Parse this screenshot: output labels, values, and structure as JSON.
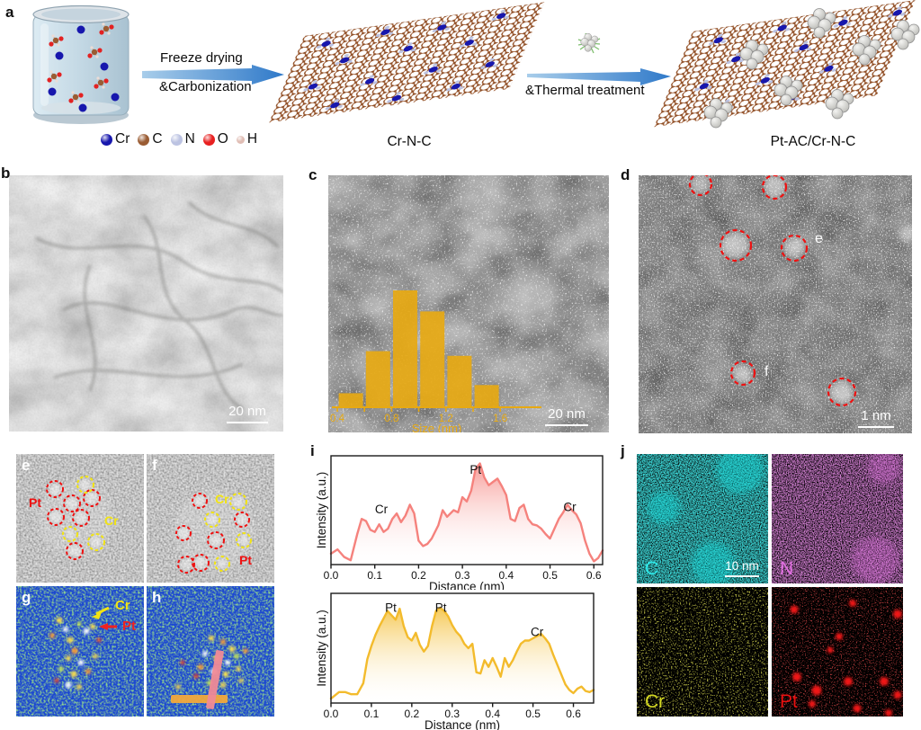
{
  "panel_a": {
    "label": "a",
    "process1_line1": "Freeze drying",
    "process1_line2": "&Carbonization",
    "process2_text": "&Thermal treatment",
    "product1_label": "Cr-N-C",
    "product2_label": "Pt-AC/Cr-N-C",
    "legend": [
      {
        "symbol": "Cr",
        "color": "#1717ad"
      },
      {
        "symbol": "C",
        "color": "#9a5c33"
      },
      {
        "symbol": "N",
        "color": "#bcc3e2"
      },
      {
        "symbol": "O",
        "color": "#e82020"
      },
      {
        "symbol": "H",
        "color": "#e0bdb4"
      }
    ]
  },
  "panel_b": {
    "label": "b",
    "scale_bar": "20 nm"
  },
  "panel_c": {
    "label": "c",
    "scale_bar": "20 nm"
  },
  "panel_d": {
    "label": "d",
    "scale_bar": "1 nm",
    "region_labels": [
      "e",
      "f"
    ]
  },
  "panel_e": {
    "label": "e",
    "pt_label": "Pt",
    "cr_label": "Cr"
  },
  "panel_f": {
    "label": "f",
    "cr_label": "Cr",
    "pt_label": "Pt"
  },
  "panel_g": {
    "label": "g",
    "cr_label": "Cr",
    "pt_label": "Pt"
  },
  "panel_h": {
    "label": "h"
  },
  "panel_i": {
    "label": "i"
  },
  "panel_j": {
    "label": "j",
    "scale_bar": "10 nm",
    "maps": [
      {
        "element": "C",
        "color": "#2ee8e8"
      },
      {
        "element": "N",
        "color": "#e26fe2"
      },
      {
        "element": "Cr",
        "color": "#d4d922"
      },
      {
        "element": "Pt",
        "color": "#ea1010"
      }
    ]
  },
  "chart_data": [
    {
      "id": "size_histogram",
      "type": "bar",
      "xlabel": "Size (nm)",
      "bin_centers": [
        0.5,
        0.7,
        0.9,
        1.1,
        1.3,
        1.5
      ],
      "bin_width": 0.2,
      "values_relative": [
        0.12,
        0.48,
        1.0,
        0.82,
        0.44,
        0.19
      ],
      "xticks": [
        0.4,
        0.8,
        1.2,
        1.6
      ],
      "xlim": [
        0.4,
        1.6
      ],
      "bar_color": "#e7a912",
      "axis_color": "#e7a912"
    },
    {
      "id": "line_profile_top",
      "type": "area",
      "xlabel": "Distance (nm)",
      "ylabel": "Intensity (a.u.)",
      "xlim": [
        0.0,
        0.62
      ],
      "xticks": [
        0.0,
        0.1,
        0.2,
        0.3,
        0.4,
        0.5,
        0.6
      ],
      "color": "#f5827d",
      "peak_labels": [
        {
          "text": "Cr",
          "x": 0.115,
          "y": 0.47
        },
        {
          "text": "Pt",
          "x": 0.33,
          "y": 0.835
        },
        {
          "text": "Cr",
          "x": 0.545,
          "y": 0.49
        }
      ],
      "points": [
        [
          0.0,
          0.1
        ],
        [
          0.015,
          0.14
        ],
        [
          0.03,
          0.07
        ],
        [
          0.045,
          0.04
        ],
        [
          0.06,
          0.28
        ],
        [
          0.07,
          0.42
        ],
        [
          0.08,
          0.4
        ],
        [
          0.09,
          0.32
        ],
        [
          0.1,
          0.3
        ],
        [
          0.11,
          0.37
        ],
        [
          0.12,
          0.3
        ],
        [
          0.13,
          0.33
        ],
        [
          0.14,
          0.42
        ],
        [
          0.15,
          0.47
        ],
        [
          0.16,
          0.39
        ],
        [
          0.17,
          0.45
        ],
        [
          0.18,
          0.55
        ],
        [
          0.19,
          0.47
        ],
        [
          0.2,
          0.22
        ],
        [
          0.21,
          0.17
        ],
        [
          0.22,
          0.19
        ],
        [
          0.23,
          0.24
        ],
        [
          0.245,
          0.36
        ],
        [
          0.255,
          0.5
        ],
        [
          0.265,
          0.44
        ],
        [
          0.28,
          0.5
        ],
        [
          0.29,
          0.48
        ],
        [
          0.3,
          0.62
        ],
        [
          0.31,
          0.58
        ],
        [
          0.32,
          0.68
        ],
        [
          0.33,
          0.88
        ],
        [
          0.34,
          0.93
        ],
        [
          0.35,
          0.8
        ],
        [
          0.36,
          0.73
        ],
        [
          0.37,
          0.76
        ],
        [
          0.38,
          0.79
        ],
        [
          0.39,
          0.72
        ],
        [
          0.4,
          0.64
        ],
        [
          0.41,
          0.42
        ],
        [
          0.42,
          0.4
        ],
        [
          0.43,
          0.52
        ],
        [
          0.44,
          0.55
        ],
        [
          0.45,
          0.42
        ],
        [
          0.46,
          0.37
        ],
        [
          0.47,
          0.36
        ],
        [
          0.48,
          0.33
        ],
        [
          0.49,
          0.28
        ],
        [
          0.5,
          0.24
        ],
        [
          0.51,
          0.33
        ],
        [
          0.52,
          0.42
        ],
        [
          0.53,
          0.48
        ],
        [
          0.54,
          0.55
        ],
        [
          0.55,
          0.5
        ],
        [
          0.56,
          0.46
        ],
        [
          0.57,
          0.38
        ],
        [
          0.58,
          0.22
        ],
        [
          0.59,
          0.1
        ],
        [
          0.6,
          0.03
        ],
        [
          0.61,
          0.06
        ],
        [
          0.62,
          0.13
        ]
      ]
    },
    {
      "id": "line_profile_bottom",
      "type": "area",
      "xlabel": "Distance (nm)",
      "ylabel": "Intensity (a.u.)",
      "xlim": [
        0.0,
        0.65
      ],
      "xticks": [
        0.0,
        0.1,
        0.2,
        0.3,
        0.4,
        0.5,
        0.6
      ],
      "color": "#f3bb2c",
      "peak_labels": [
        {
          "text": "Pt",
          "x": 0.148,
          "y": 0.83
        },
        {
          "text": "Pt",
          "x": 0.272,
          "y": 0.83
        },
        {
          "text": "Cr",
          "x": 0.51,
          "y": 0.61
        }
      ],
      "points": [
        [
          0.0,
          0.04
        ],
        [
          0.02,
          0.1
        ],
        [
          0.035,
          0.1
        ],
        [
          0.05,
          0.08
        ],
        [
          0.065,
          0.08
        ],
        [
          0.08,
          0.18
        ],
        [
          0.09,
          0.4
        ],
        [
          0.1,
          0.52
        ],
        [
          0.11,
          0.62
        ],
        [
          0.12,
          0.7
        ],
        [
          0.13,
          0.77
        ],
        [
          0.14,
          0.84
        ],
        [
          0.15,
          0.8
        ],
        [
          0.16,
          0.76
        ],
        [
          0.17,
          0.86
        ],
        [
          0.18,
          0.7
        ],
        [
          0.19,
          0.6
        ],
        [
          0.2,
          0.57
        ],
        [
          0.21,
          0.64
        ],
        [
          0.22,
          0.53
        ],
        [
          0.23,
          0.47
        ],
        [
          0.24,
          0.52
        ],
        [
          0.25,
          0.7
        ],
        [
          0.26,
          0.84
        ],
        [
          0.27,
          0.87
        ],
        [
          0.28,
          0.84
        ],
        [
          0.29,
          0.79
        ],
        [
          0.3,
          0.71
        ],
        [
          0.31,
          0.65
        ],
        [
          0.32,
          0.61
        ],
        [
          0.33,
          0.54
        ],
        [
          0.34,
          0.5
        ],
        [
          0.35,
          0.54
        ],
        [
          0.36,
          0.28
        ],
        [
          0.37,
          0.27
        ],
        [
          0.38,
          0.39
        ],
        [
          0.39,
          0.33
        ],
        [
          0.4,
          0.41
        ],
        [
          0.41,
          0.33
        ],
        [
          0.42,
          0.24
        ],
        [
          0.43,
          0.41
        ],
        [
          0.44,
          0.33
        ],
        [
          0.45,
          0.39
        ],
        [
          0.46,
          0.47
        ],
        [
          0.47,
          0.54
        ],
        [
          0.48,
          0.57
        ],
        [
          0.49,
          0.57
        ],
        [
          0.5,
          0.59
        ],
        [
          0.51,
          0.61
        ],
        [
          0.52,
          0.63
        ],
        [
          0.53,
          0.59
        ],
        [
          0.54,
          0.54
        ],
        [
          0.55,
          0.44
        ],
        [
          0.56,
          0.35
        ],
        [
          0.57,
          0.26
        ],
        [
          0.58,
          0.17
        ],
        [
          0.59,
          0.12
        ],
        [
          0.6,
          0.09
        ],
        [
          0.61,
          0.13
        ],
        [
          0.62,
          0.15
        ],
        [
          0.63,
          0.11
        ],
        [
          0.64,
          0.1
        ],
        [
          0.65,
          0.12
        ]
      ]
    }
  ]
}
